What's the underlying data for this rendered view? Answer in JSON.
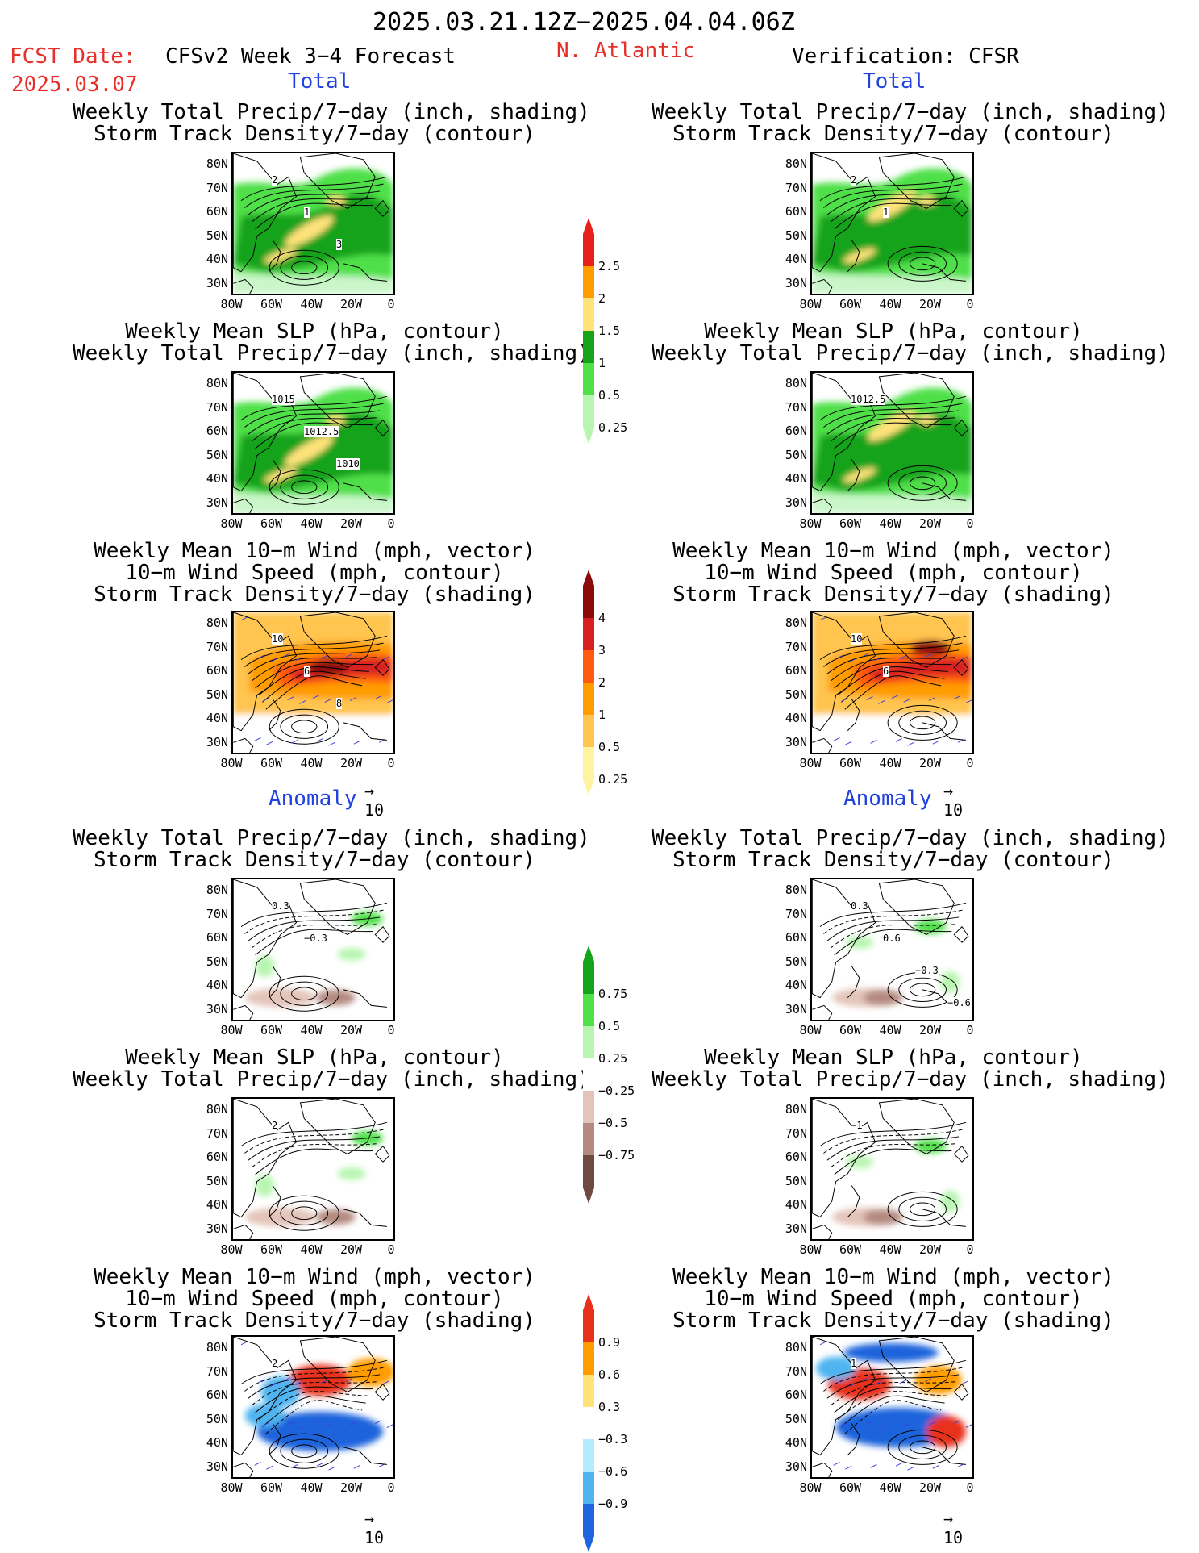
{
  "header": {
    "period": "2025.03.21.12Z−2025.04.04.06Z",
    "fcst_label": "FCST Date:",
    "fcst_date": "2025.03.07",
    "model": "CFSv2 Week 3−4 Forecast",
    "region": "N. Atlantic",
    "verification": "Verification: CFSR"
  },
  "sections": {
    "total": "Total",
    "anomaly": "Anomaly"
  },
  "panel_titles": {
    "precip_storm": [
      "Weekly Total Precip/7−day (inch, shading)",
      "Storm Track Density/7−day (contour)"
    ],
    "slp_precip": [
      "Weekly Mean SLP (hPa, contour)",
      "Weekly Total Precip/7−day (inch, shading)"
    ],
    "wind_storm": [
      "Weekly Mean 10−m Wind (mph, vector)",
      "10−m Wind Speed (mph, contour)",
      "Storm Track Density/7−day (shading)"
    ]
  },
  "axes": {
    "lat_labels": [
      "80N",
      "70N",
      "60N",
      "50N",
      "40N",
      "30N"
    ],
    "lon_labels": [
      "80W",
      "60W",
      "40W",
      "20W",
      "0"
    ]
  },
  "vector_scale": "10",
  "contour_labels": {
    "r1_left": [
      "2",
      "1",
      "3"
    ],
    "r1_right": [
      "2",
      "1"
    ],
    "r2_left": [
      "1015",
      "1012.5",
      "1010"
    ],
    "r2_right": [
      "1012.5"
    ],
    "r3_left": [
      "10",
      "6",
      "8"
    ],
    "r3_right": [
      "10",
      "6"
    ],
    "r4_left": [
      "0.3",
      "−0.3"
    ],
    "r4_right": [
      "0.3",
      "0.6",
      "−0.3",
      "−0.6"
    ],
    "r5_left": [
      "2"
    ],
    "r5_right": [
      "−1"
    ],
    "r6_left": [
      "2"
    ],
    "r6_right": [
      "1"
    ]
  },
  "colorbars": {
    "precip_total": {
      "labels": [
        "2.5",
        "2",
        "1.5",
        "1",
        "0.5",
        "0.25"
      ],
      "colors": [
        "#e8201c",
        "#ff9c00",
        "#ffe27a",
        "#16a31c",
        "#4fe04a",
        "#b8f5b0"
      ]
    },
    "storm_total": {
      "labels": [
        "4",
        "3",
        "2",
        "1",
        "0.5",
        "0.25"
      ],
      "colors": [
        "#8b0a0a",
        "#d82020",
        "#ff5a10",
        "#ff9c00",
        "#ffc550",
        "#fff3a0"
      ]
    },
    "precip_anom": {
      "labels": [
        "0.75",
        "0.5",
        "0.25",
        "−0.25",
        "−0.5",
        "−0.75"
      ],
      "colors": [
        "#16a31c",
        "#4fe04a",
        "#b8f5b0",
        "#ffffff",
        "#e3c4ba",
        "#b48a80",
        "#6e4a40"
      ]
    },
    "storm_anom": {
      "labels": [
        "0.9",
        "0.6",
        "0.3",
        "−0.3",
        "−0.6",
        "−0.9"
      ],
      "colors": [
        "#e8301c",
        "#ff9c00",
        "#ffe27a",
        "#ffffff",
        "#b4ecff",
        "#50b4f0",
        "#1e64dc"
      ]
    }
  }
}
